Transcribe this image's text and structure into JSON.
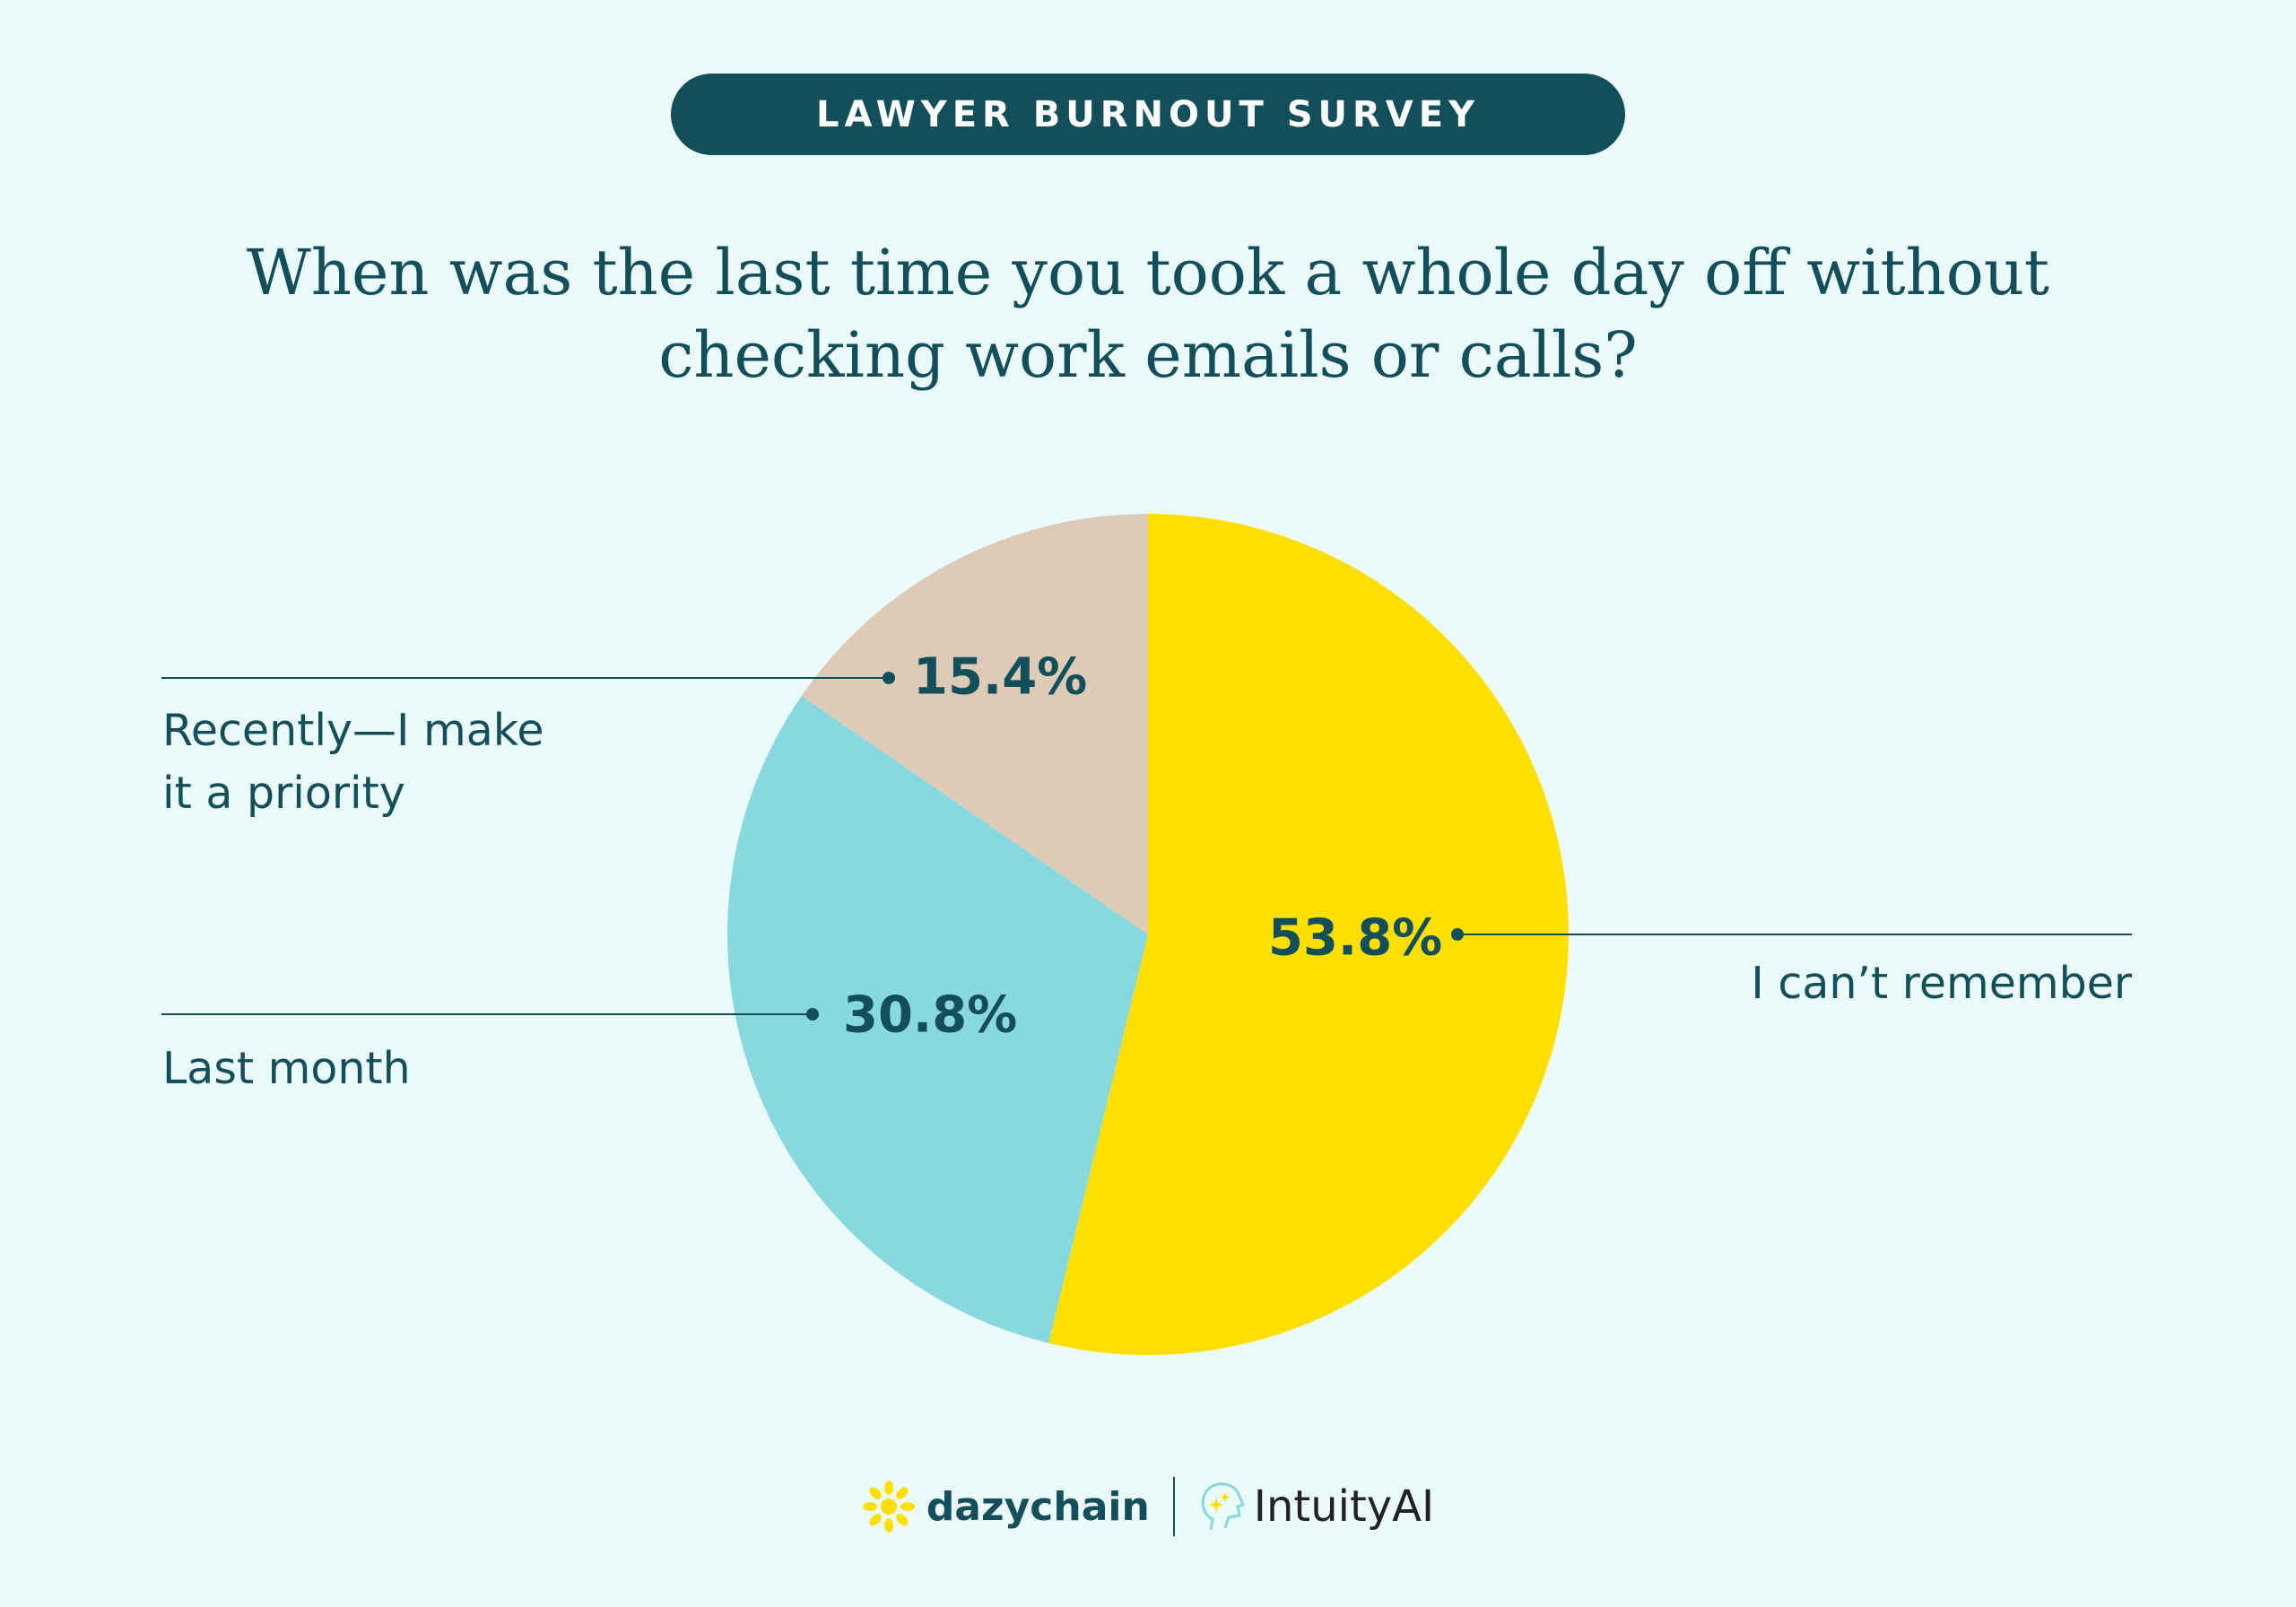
{
  "header": {
    "badge": "LAWYER BURNOUT SURVEY"
  },
  "title_lines": [
    "When was the last time you took a whole day off without",
    "checking work emails or calls?"
  ],
  "chart_data": {
    "type": "pie",
    "title": "When was the last time you took a whole day off without checking work emails or calls?",
    "start": "top",
    "direction": "clockwise",
    "slices": [
      {
        "label": "I can’t remember",
        "value": 53.8,
        "display": "53.8%",
        "color": "#ffdf00"
      },
      {
        "label": "Last month",
        "value": 30.8,
        "display": "30.8%",
        "color": "#87d9df"
      },
      {
        "label": "Recently—I make it a priority",
        "label_lines": [
          "Recently—I make",
          "it a priority"
        ],
        "value": 15.4,
        "display": "15.4%",
        "color": "#ddcbb8"
      }
    ]
  },
  "footer": {
    "logo1": "dazychain",
    "logo2": "IntuityAI"
  },
  "colors": {
    "accent": "#134f5a",
    "background": "#ebfafb"
  }
}
